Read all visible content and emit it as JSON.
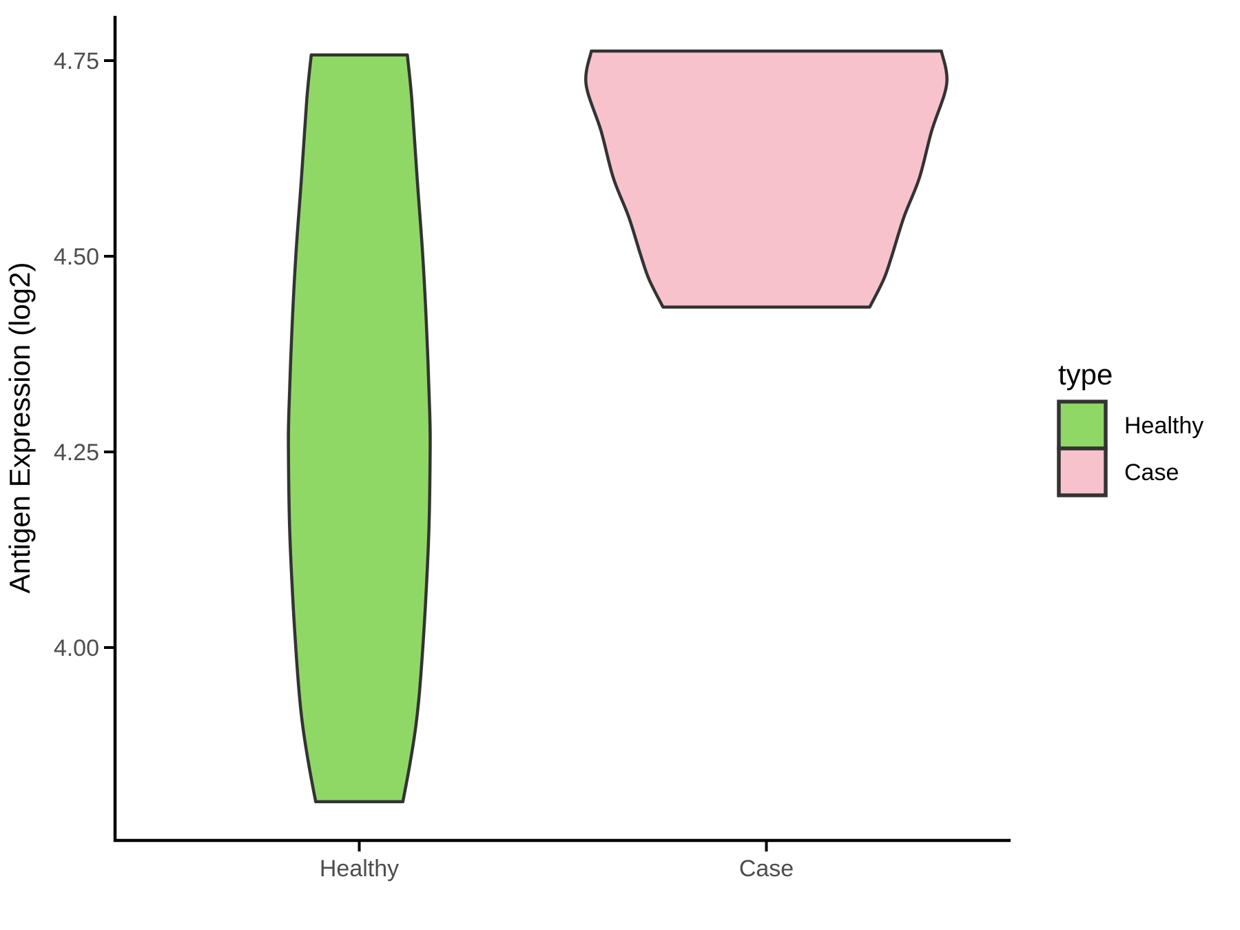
{
  "colors": {
    "background": "#FFFFFF",
    "healthy_fill": "#90D866",
    "case_fill": "#F8C2CD",
    "violin_outline": "#333333",
    "axis_line": "#000000",
    "tick_label": "#4D4D4D",
    "title_text": "#000000"
  },
  "chart_data": {
    "type": "violin",
    "title": "",
    "xlabel": "",
    "ylabel": "Antigen Expression (log2)",
    "categories": [
      "Healthy",
      "Case"
    ],
    "y_ticks": [
      "4.00",
      "4.25",
      "4.50",
      "4.75"
    ],
    "y_tick_values": [
      4.0,
      4.25,
      4.5,
      4.75
    ],
    "ylim": [
      3.7535,
      4.807
    ],
    "xlim": [
      0.4,
      2.6
    ],
    "grid": false,
    "legend": {
      "title": "type",
      "position": "right",
      "entries": [
        {
          "label": "Healthy",
          "color": "#90D866"
        },
        {
          "label": "Case",
          "color": "#F8C2CD"
        }
      ]
    },
    "series": [
      {
        "name": "Healthy",
        "x": 1,
        "value_range": [
          3.803,
          4.757
        ],
        "profile": [
          [
            3.803,
            0.107
          ],
          [
            3.85,
            0.124
          ],
          [
            3.9,
            0.139
          ],
          [
            3.95,
            0.149
          ],
          [
            4.05,
            0.162
          ],
          [
            4.15,
            0.171
          ],
          [
            4.25,
            0.174
          ],
          [
            4.3,
            0.173
          ],
          [
            4.4,
            0.166
          ],
          [
            4.5,
            0.156
          ],
          [
            4.6,
            0.142
          ],
          [
            4.7,
            0.129
          ],
          [
            4.757,
            0.118
          ]
        ]
      },
      {
        "name": "Case",
        "x": 2,
        "value_range": [
          4.435,
          4.762
        ],
        "profile": [
          [
            4.435,
            0.254
          ],
          [
            4.47,
            0.288
          ],
          [
            4.5,
            0.308
          ],
          [
            4.55,
            0.338
          ],
          [
            4.6,
            0.376
          ],
          [
            4.66,
            0.406
          ],
          [
            4.72,
            0.443
          ],
          [
            4.762,
            0.43
          ]
        ]
      }
    ]
  }
}
